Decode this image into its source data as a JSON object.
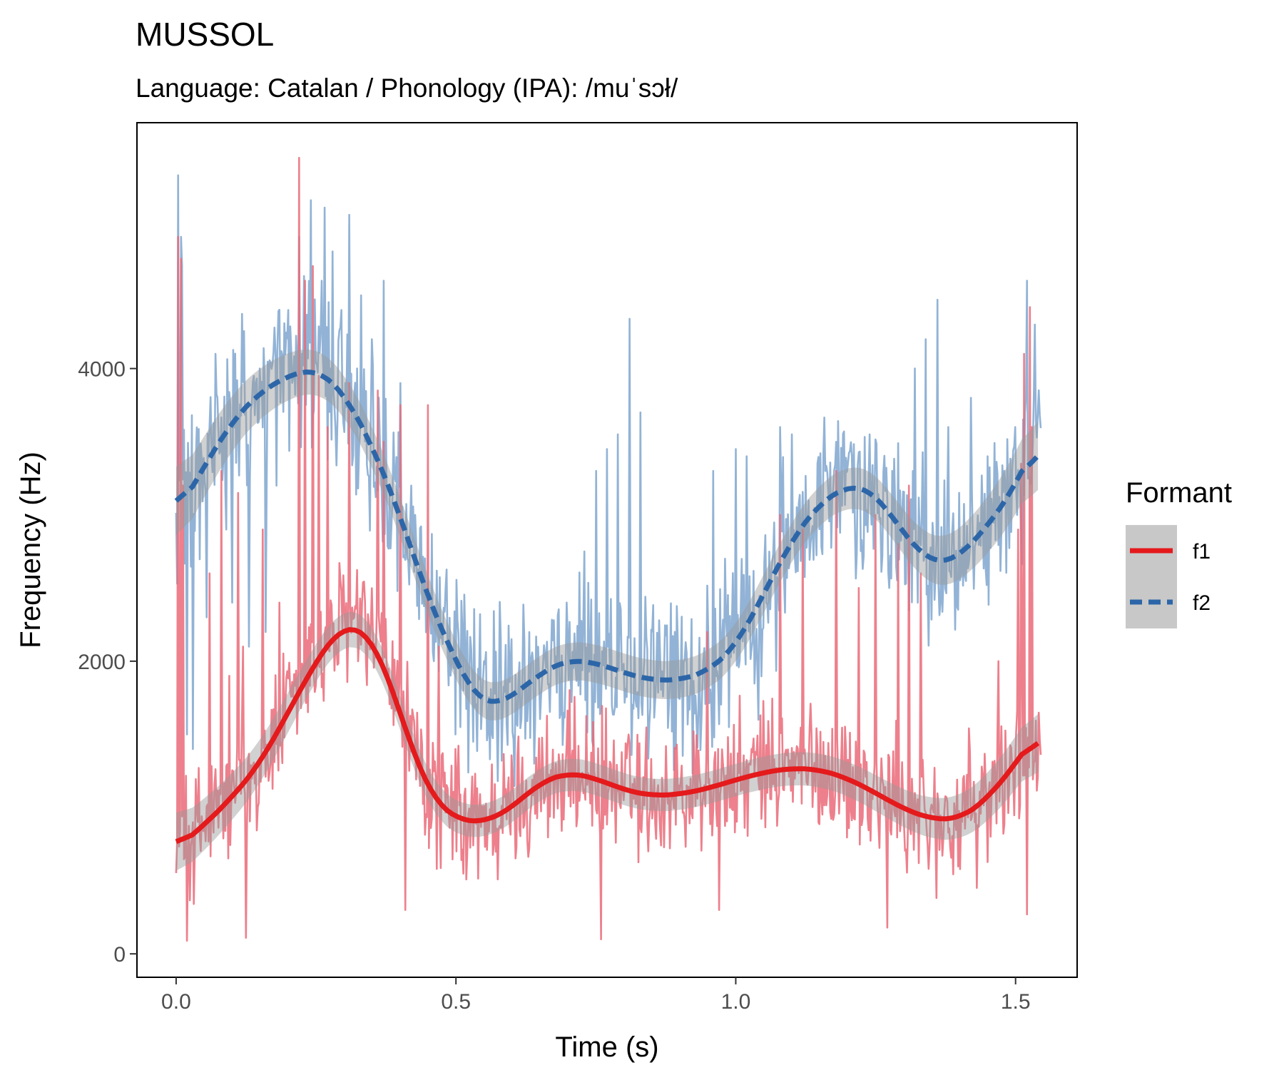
{
  "chart_data": {
    "type": "line",
    "title": "MUSSOL",
    "subtitle": "Language: Catalan / Phonology (IPA): /muˈsɔł/",
    "xlabel": "Time (s)",
    "ylabel": "Frequency (Hz)",
    "xlim": [
      -0.07,
      1.61
    ],
    "ylim": [
      -160,
      5680
    ],
    "x_ticks": [
      0.0,
      0.5,
      1.0,
      1.5
    ],
    "x_tick_labels": [
      "0.0",
      "0.5",
      "1.0",
      "1.5"
    ],
    "y_ticks": [
      0,
      2000,
      4000
    ],
    "y_tick_labels": [
      "0",
      "2000",
      "4000"
    ],
    "grid": false,
    "legend": {
      "title": "Formant",
      "position": "right",
      "entries": [
        "f1",
        "f2"
      ]
    },
    "series": [
      {
        "name": "f1",
        "color": "#e41a1c",
        "raw_color": "#ea6a78",
        "line_style": "solid",
        "smooth": {
          "x": [
            0.0,
            0.05,
            0.1,
            0.15,
            0.2,
            0.25,
            0.28,
            0.3,
            0.32,
            0.34,
            0.36,
            0.38,
            0.4,
            0.43,
            0.46,
            0.5,
            0.53,
            0.56,
            0.6,
            0.65,
            0.7,
            0.75,
            0.8,
            0.85,
            0.9,
            0.95,
            1.0,
            1.05,
            1.1,
            1.15,
            1.2,
            1.25,
            1.3,
            1.35,
            1.4,
            1.45,
            1.5,
            1.54
          ],
          "y": [
            720,
            880,
            1070,
            1300,
            1650,
            2000,
            2170,
            2235,
            2240,
            2200,
            2080,
            1880,
            1650,
            1300,
            1050,
            920,
            900,
            910,
            1000,
            1170,
            1240,
            1200,
            1120,
            1080,
            1090,
            1130,
            1190,
            1240,
            1270,
            1260,
            1200,
            1100,
            990,
            920,
            920,
            1060,
            1300,
            1520
          ],
          "band": 110
        },
        "raw": {
          "x_start": 0.0,
          "x_end": 1.545,
          "samples": 880,
          "spikes": [
            {
              "x": 0.003,
              "y": 4900
            },
            {
              "x": 0.008,
              "y": 4750
            },
            {
              "x": 0.012,
              "y": 3200
            },
            {
              "x": 0.06,
              "y": 2600
            },
            {
              "x": 0.08,
              "y": 3300
            },
            {
              "x": 0.095,
              "y": 1900
            },
            {
              "x": 0.11,
              "y": 3150
            },
            {
              "x": 0.12,
              "y": 2100
            },
            {
              "x": 0.155,
              "y": 2900
            },
            {
              "x": 0.185,
              "y": 2400
            },
            {
              "x": 0.195,
              "y": 1700
            },
            {
              "x": 0.22,
              "y": 5440
            },
            {
              "x": 0.23,
              "y": 4600
            },
            {
              "x": 0.245,
              "y": 4700
            },
            {
              "x": 0.255,
              "y": 3950
            },
            {
              "x": 0.27,
              "y": 3600
            },
            {
              "x": 0.31,
              "y": 3900
            },
            {
              "x": 0.36,
              "y": 3850
            },
            {
              "x": 0.37,
              "y": 3500
            },
            {
              "x": 0.4,
              "y": 3750
            },
            {
              "x": 0.41,
              "y": 2300
            },
            {
              "x": 0.45,
              "y": 3750
            },
            {
              "x": 0.47,
              "y": 2100
            },
            {
              "x": 0.95,
              "y": 2200
            },
            {
              "x": 1.08,
              "y": 3000
            },
            {
              "x": 1.12,
              "y": 2900
            },
            {
              "x": 1.18,
              "y": 3300
            },
            {
              "x": 1.22,
              "y": 2500
            },
            {
              "x": 1.25,
              "y": 3000
            },
            {
              "x": 1.27,
              "y": 3300
            },
            {
              "x": 1.29,
              "y": 2800
            },
            {
              "x": 1.31,
              "y": 3200
            },
            {
              "x": 1.33,
              "y": 2600
            },
            {
              "x": 1.47,
              "y": 2000
            },
            {
              "x": 1.505,
              "y": 2900
            },
            {
              "x": 1.51,
              "y": 3350
            },
            {
              "x": 1.515,
              "y": 4100
            },
            {
              "x": 1.525,
              "y": 4420
            },
            {
              "x": 1.53,
              "y": 3600
            },
            {
              "x": 0.5,
              "y": 1400
            },
            {
              "x": 0.52,
              "y": 700
            },
            {
              "x": 0.76,
              "y": 100
            },
            {
              "x": 0.02,
              "y": 90
            },
            {
              "x": 0.125,
              "y": 110
            },
            {
              "x": 0.41,
              "y": 300
            },
            {
              "x": 1.27,
              "y": 180
            },
            {
              "x": 1.52,
              "y": 270
            },
            {
              "x": 0.97,
              "y": 300
            }
          ]
        }
      },
      {
        "name": "f2",
        "color": "#2c66a8",
        "raw_color": "#7fa6cf",
        "line_style": "dashed",
        "smooth": {
          "x": [
            0.0,
            0.05,
            0.1,
            0.15,
            0.2,
            0.23,
            0.26,
            0.3,
            0.35,
            0.4,
            0.45,
            0.5,
            0.53,
            0.56,
            0.58,
            0.62,
            0.66,
            0.7,
            0.75,
            0.8,
            0.85,
            0.9,
            0.95,
            1.0,
            1.05,
            1.1,
            1.15,
            1.2,
            1.23,
            1.26,
            1.3,
            1.34,
            1.37,
            1.4,
            1.45,
            1.5,
            1.54
          ],
          "y": [
            3000,
            3330,
            3640,
            3840,
            3950,
            3990,
            3980,
            3830,
            3480,
            3000,
            2430,
            2000,
            1770,
            1700,
            1710,
            1820,
            1940,
            2010,
            1990,
            1920,
            1870,
            1870,
            1930,
            2100,
            2460,
            2830,
            3080,
            3200,
            3190,
            3100,
            2870,
            2700,
            2660,
            2720,
            2920,
            3200,
            3520
          ],
          "band": 130
        },
        "raw": {
          "x_start": 0.0,
          "x_end": 1.545,
          "samples": 880,
          "spikes": [
            {
              "x": 0.003,
              "y": 5320
            },
            {
              "x": 0.008,
              "y": 4900
            },
            {
              "x": 0.01,
              "y": 4700
            },
            {
              "x": 0.02,
              "y": 1500
            },
            {
              "x": 0.03,
              "y": 1400
            },
            {
              "x": 0.055,
              "y": 2300
            },
            {
              "x": 0.07,
              "y": 4100
            },
            {
              "x": 0.09,
              "y": 2900
            },
            {
              "x": 0.1,
              "y": 2400
            },
            {
              "x": 0.13,
              "y": 2100
            },
            {
              "x": 0.15,
              "y": 4000
            },
            {
              "x": 0.16,
              "y": 2200
            },
            {
              "x": 0.18,
              "y": 3200
            },
            {
              "x": 0.2,
              "y": 4400
            },
            {
              "x": 0.22,
              "y": 4900
            },
            {
              "x": 0.24,
              "y": 4800
            },
            {
              "x": 0.26,
              "y": 4600
            },
            {
              "x": 0.24,
              "y": 5150
            },
            {
              "x": 0.265,
              "y": 5100
            },
            {
              "x": 0.28,
              "y": 4800
            },
            {
              "x": 0.31,
              "y": 5050
            },
            {
              "x": 0.33,
              "y": 4500
            },
            {
              "x": 0.35,
              "y": 4200
            },
            {
              "x": 0.37,
              "y": 4600
            },
            {
              "x": 0.4,
              "y": 3900
            },
            {
              "x": 0.42,
              "y": 3200
            },
            {
              "x": 0.46,
              "y": 2000
            },
            {
              "x": 0.55,
              "y": 2000
            },
            {
              "x": 0.6,
              "y": 2150
            },
            {
              "x": 0.66,
              "y": 2050
            },
            {
              "x": 0.7,
              "y": 2200
            },
            {
              "x": 0.73,
              "y": 2750
            },
            {
              "x": 0.75,
              "y": 3300
            },
            {
              "x": 0.77,
              "y": 3450
            },
            {
              "x": 0.79,
              "y": 3550
            },
            {
              "x": 0.81,
              "y": 4340
            },
            {
              "x": 0.83,
              "y": 2400
            },
            {
              "x": 0.83,
              "y": 3700
            },
            {
              "x": 0.96,
              "y": 3300
            },
            {
              "x": 0.98,
              "y": 2700
            },
            {
              "x": 1.0,
              "y": 3450
            },
            {
              "x": 1.02,
              "y": 3400
            },
            {
              "x": 1.08,
              "y": 3600
            },
            {
              "x": 1.1,
              "y": 3550
            },
            {
              "x": 1.13,
              "y": 3100
            },
            {
              "x": 1.16,
              "y": 3300
            },
            {
              "x": 1.2,
              "y": 3350
            },
            {
              "x": 1.24,
              "y": 3550
            },
            {
              "x": 1.28,
              "y": 3300
            },
            {
              "x": 1.32,
              "y": 4000
            },
            {
              "x": 1.34,
              "y": 4200
            },
            {
              "x": 1.36,
              "y": 4470
            },
            {
              "x": 1.38,
              "y": 3600
            },
            {
              "x": 1.42,
              "y": 3800
            },
            {
              "x": 1.45,
              "y": 3400
            },
            {
              "x": 1.48,
              "y": 3300
            },
            {
              "x": 1.5,
              "y": 3600
            },
            {
              "x": 1.52,
              "y": 4600
            },
            {
              "x": 1.535,
              "y": 4300
            },
            {
              "x": 1.54,
              "y": 3700
            },
            {
              "x": 0.5,
              "y": 1500
            },
            {
              "x": 0.64,
              "y": 1300
            },
            {
              "x": 1.04,
              "y": 1600
            }
          ]
        }
      }
    ]
  }
}
